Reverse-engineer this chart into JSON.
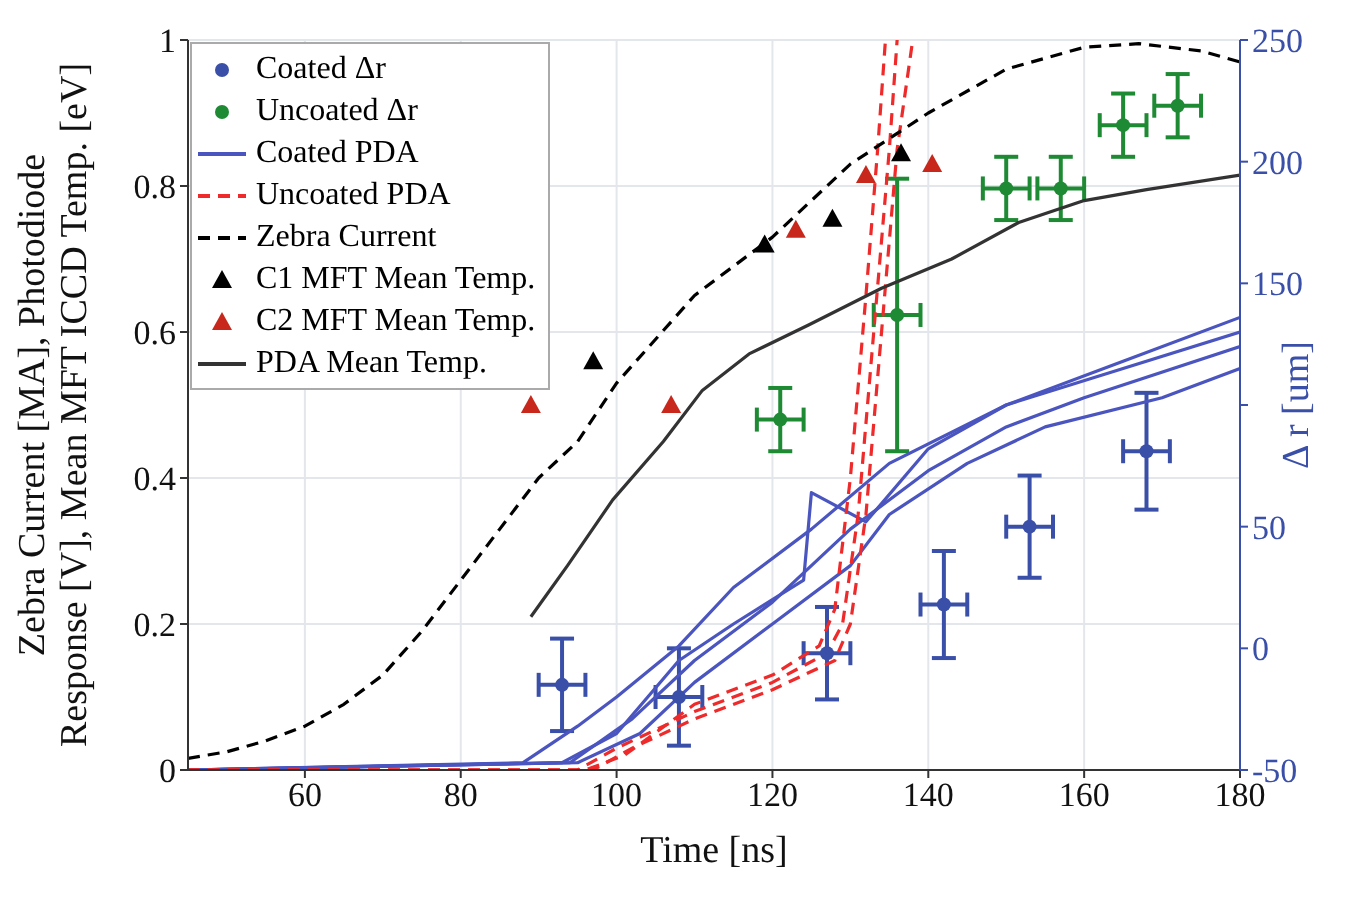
{
  "chart_data": {
    "type": "line",
    "xlabel": "Time [ns]",
    "ylabel": "Zebra Current [MA], Photodiode Response [V], Mean MFT ICCD Temp. [eV]",
    "y2label": "Δ r [um]",
    "xlim": [
      45,
      180
    ],
    "xticks": [
      60,
      80,
      100,
      120,
      140,
      160,
      180
    ],
    "ylim": [
      0,
      1
    ],
    "yticks": [
      0,
      0.2,
      0.4,
      0.6,
      0.8,
      1
    ],
    "y2lim": [
      -50,
      250
    ],
    "y2ticks": [
      -50,
      0,
      50,
      {
        "value": 100,
        "label": null
      },
      150,
      200,
      250
    ],
    "grid": true,
    "legend": "top left",
    "series": [
      {
        "name": "Coated Δr",
        "type": "scatter",
        "axis": "y2",
        "color": "#3a4fa8",
        "marker": "circle",
        "x": [
          93,
          108,
          127,
          142,
          153,
          168
        ],
        "values": [
          -15,
          -20,
          -2,
          18,
          50,
          81
        ],
        "errors": [
          19,
          20,
          19,
          22,
          21,
          24
        ],
        "xerrors": [
          3,
          3,
          3,
          3,
          3,
          3
        ]
      },
      {
        "name": "Uncoated Δr",
        "type": "scatter",
        "axis": "y2",
        "color": "#1e8a34",
        "marker": "circle",
        "x": [
          121,
          136,
          150,
          157,
          165,
          172
        ],
        "values": [
          94,
          137,
          189,
          189,
          215,
          223
        ],
        "errors": [
          13,
          56,
          13,
          13,
          13,
          13
        ],
        "xerrors": [
          3,
          3,
          3,
          3,
          3,
          3
        ]
      },
      {
        "name": "Coated PDA",
        "color": "#4a55c0",
        "marker": "none",
        "line_style": "solid",
        "x": [
          45,
          88,
          95,
          100,
          108,
          115,
          125,
          135,
          150,
          165,
          180
        ],
        "values": [
          0,
          0.01,
          0.06,
          0.1,
          0.17,
          0.25,
          0.33,
          0.42,
          0.5,
          0.56,
          0.62
        ]
      },
      {
        "color": "#4a55c0",
        "marker": "none",
        "line_style": "solid",
        "x": [
          45,
          93,
          100,
          108,
          115,
          124,
          125,
          132,
          140,
          150,
          165,
          180
        ],
        "values": [
          0,
          0.01,
          0.05,
          0.15,
          0.2,
          0.26,
          0.38,
          0.34,
          0.44,
          0.5,
          0.55,
          0.6
        ]
      },
      {
        "color": "#4a55c0",
        "marker": "none",
        "line_style": "solid",
        "x": [
          45,
          95,
          103,
          110,
          120,
          130,
          135,
          145,
          155,
          170,
          180
        ],
        "values": [
          0,
          0.01,
          0.05,
          0.12,
          0.2,
          0.28,
          0.35,
          0.42,
          0.47,
          0.51,
          0.55
        ]
      },
      {
        "color": "#4a55c0",
        "marker": "none",
        "line_style": "solid",
        "x": [
          45,
          94,
          102,
          110,
          120,
          130,
          140,
          150,
          160,
          180
        ],
        "values": [
          0,
          0.01,
          0.07,
          0.15,
          0.23,
          0.33,
          0.41,
          0.47,
          0.51,
          0.58
        ]
      },
      {
        "name": "Uncoated PDA",
        "color": "#ee2a2a",
        "marker": "none",
        "line_style": "dashed",
        "x": [
          45,
          95,
          100,
          110,
          120,
          127,
          129,
          131,
          133,
          135,
          136
        ],
        "values": [
          0,
          0,
          0.03,
          0.08,
          0.12,
          0.16,
          0.2,
          0.35,
          0.6,
          0.85,
          1
        ]
      },
      {
        "color": "#ee2a2a",
        "marker": "none",
        "line_style": "dashed",
        "x": [
          45,
          97,
          102,
          110,
          120,
          128,
          130,
          132,
          134,
          136,
          138
        ],
        "values": [
          0,
          0,
          0.03,
          0.07,
          0.11,
          0.15,
          0.2,
          0.35,
          0.6,
          0.85,
          1
        ]
      },
      {
        "color": "#ee2a2a",
        "marker": "none",
        "line_style": "dashed",
        "x": [
          45,
          96,
          101,
          110,
          120,
          126,
          128,
          130,
          132,
          133.5,
          134.5
        ],
        "values": [
          0,
          0,
          0.02,
          0.09,
          0.13,
          0.17,
          0.22,
          0.4,
          0.65,
          0.85,
          1
        ]
      },
      {
        "name": "Zebra Current",
        "color": "#000000",
        "marker": "none",
        "line_style": "dashed",
        "x": [
          45,
          50,
          55,
          60,
          65,
          70,
          75,
          80,
          85,
          90,
          95,
          100,
          110,
          120,
          130,
          140,
          150,
          160,
          167,
          175,
          180
        ],
        "values": [
          0.016,
          0.025,
          0.04,
          0.06,
          0.09,
          0.13,
          0.19,
          0.26,
          0.33,
          0.4,
          0.45,
          0.53,
          0.65,
          0.73,
          0.83,
          0.9,
          0.96,
          0.99,
          0.995,
          0.985,
          0.97
        ]
      },
      {
        "name": "C1 MFT Mean Temp.",
        "type": "scatter",
        "color": "#000000",
        "marker": "triangle",
        "x": [
          97,
          119,
          127.7,
          136.5
        ],
        "values": [
          0.56,
          0.72,
          0.755,
          0.845
        ]
      },
      {
        "name": "C2 MFT Mean Temp.",
        "type": "scatter",
        "color": "#c8281c",
        "marker": "triangle",
        "x": [
          89,
          107,
          123,
          132,
          140.5
        ],
        "values": [
          0.5,
          0.5,
          0.74,
          0.815,
          0.83
        ]
      },
      {
        "name": "PDA Mean Temp.",
        "color": "#333333",
        "marker": "none",
        "line_style": "solid",
        "x": [
          89,
          93.7,
          99.5,
          106,
          111,
          117,
          124.7,
          134,
          143,
          151.6,
          160,
          168,
          180
        ],
        "values": [
          0.21,
          0.28,
          0.37,
          0.45,
          0.52,
          0.57,
          0.61,
          0.66,
          0.7,
          0.75,
          0.78,
          0.795,
          0.815
        ]
      }
    ]
  }
}
